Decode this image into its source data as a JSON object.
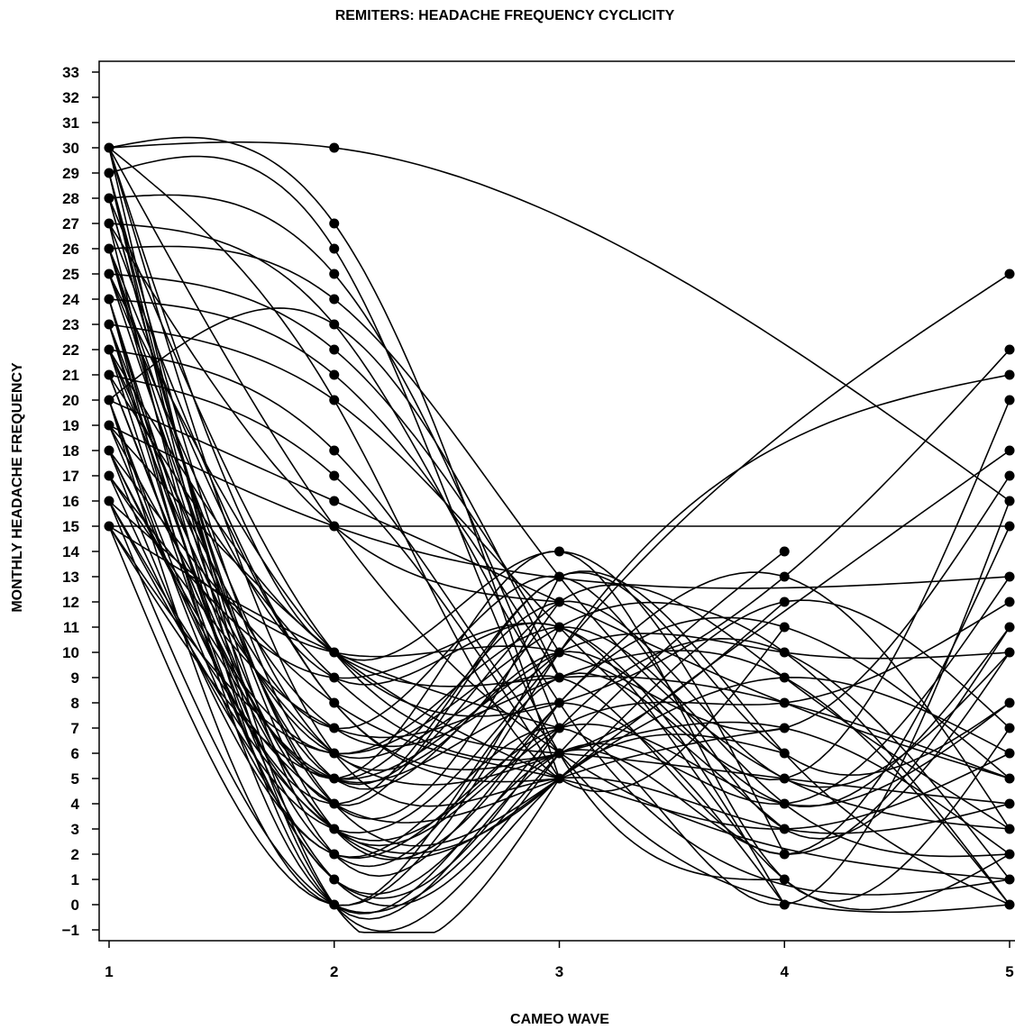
{
  "chart_data": {
    "type": "line",
    "title": "REMITERS: HEADACHE FREQUENCY CYCLICITY",
    "xlabel": "CAMEO WAVE",
    "ylabel": "MONTHLY HEADACHE FREQUENCY",
    "x_ticks": [
      "1",
      "2",
      "3",
      "4",
      "5"
    ],
    "y_ticks": [
      "-1",
      "0",
      "1",
      "2",
      "3",
      "4",
      "5",
      "6",
      "7",
      "8",
      "9",
      "10",
      "11",
      "12",
      "13",
      "14",
      "15",
      "16",
      "17",
      "18",
      "19",
      "20",
      "21",
      "22",
      "23",
      "24",
      "25",
      "26",
      "27",
      "28",
      "29",
      "30",
      "31",
      "32",
      "33"
    ],
    "xlim": [
      0.95,
      5
    ],
    "ylim": [
      -1.4,
      33.5
    ],
    "grid": false,
    "legend": "none",
    "line_color": "#000000",
    "marker": "filled-circle",
    "observed_points": {
      "wave_1": [
        15,
        16,
        17,
        18,
        19,
        20,
        21,
        22,
        23,
        24,
        25,
        26,
        27,
        28,
        29,
        30
      ],
      "wave_2": [
        0,
        1,
        2,
        3,
        4,
        5,
        6,
        7,
        8,
        9,
        10,
        15,
        16,
        17,
        18,
        20,
        21,
        22,
        23,
        24,
        25,
        26,
        27,
        30
      ],
      "wave_3": [
        5,
        6,
        7,
        8,
        9,
        10,
        11,
        12,
        13,
        14
      ],
      "wave_4": [
        0,
        1,
        2,
        3,
        4,
        5,
        6,
        7,
        8,
        9,
        10,
        11,
        12,
        13,
        14
      ],
      "wave_5": [
        0,
        1,
        2,
        3,
        4,
        5,
        6,
        7,
        8,
        10,
        11,
        12,
        13,
        15,
        16,
        17,
        18,
        20,
        21,
        22,
        25
      ]
    },
    "series": [
      {
        "x": [
          1,
          5
        ],
        "values": [
          15,
          15
        ]
      },
      {
        "x": [
          1,
          2,
          5
        ],
        "values": [
          30,
          30,
          16
        ]
      },
      {
        "x": [
          1,
          2,
          3
        ],
        "values": [
          30,
          27,
          5
        ]
      },
      {
        "x": [
          1,
          2,
          3,
          4
        ],
        "values": [
          29,
          26,
          6,
          1
        ]
      },
      {
        "x": [
          1,
          2,
          3
        ],
        "values": [
          28,
          25,
          7
        ]
      },
      {
        "x": [
          1,
          2,
          3,
          5
        ],
        "values": [
          27,
          23,
          8,
          1
        ]
      },
      {
        "x": [
          1,
          2,
          3,
          4,
          5
        ],
        "values": [
          26,
          24,
          13,
          5,
          3
        ]
      },
      {
        "x": [
          1,
          2,
          3
        ],
        "values": [
          25,
          22,
          10
        ]
      },
      {
        "x": [
          1,
          2,
          3
        ],
        "values": [
          24,
          21,
          9
        ]
      },
      {
        "x": [
          1,
          2,
          3,
          4
        ],
        "values": [
          23,
          20,
          11,
          3
        ]
      },
      {
        "x": [
          1,
          2,
          3,
          5
        ],
        "values": [
          22,
          18,
          6,
          0
        ]
      },
      {
        "x": [
          1,
          2,
          3
        ],
        "values": [
          21,
          17,
          5
        ]
      },
      {
        "x": [
          1,
          2,
          3,
          4,
          5
        ],
        "values": [
          20,
          16,
          12,
          8,
          5
        ]
      },
      {
        "x": [
          1,
          2,
          5
        ],
        "values": [
          19,
          15,
          13
        ]
      },
      {
        "x": [
          1,
          2,
          3,
          4
        ],
        "values": [
          30,
          10,
          14,
          2
        ]
      },
      {
        "x": [
          1,
          2,
          3
        ],
        "values": [
          30,
          0,
          5
        ]
      },
      {
        "x": [
          1,
          2,
          3,
          4,
          5
        ],
        "values": [
          29,
          5,
          10,
          4,
          11
        ]
      },
      {
        "x": [
          1,
          2,
          3
        ],
        "values": [
          28,
          3,
          8
        ]
      },
      {
        "x": [
          1,
          2,
          3,
          4,
          5
        ],
        "values": [
          27,
          8,
          6,
          7,
          2
        ]
      },
      {
        "x": [
          1,
          2,
          3
        ],
        "values": [
          26,
          6,
          12
        ]
      },
      {
        "x": [
          1,
          2,
          3,
          4,
          5
        ],
        "values": [
          25,
          4,
          5,
          9,
          6
        ]
      },
      {
        "x": [
          1,
          2,
          3
        ],
        "values": [
          24,
          2,
          11
        ]
      },
      {
        "x": [
          1,
          2,
          3,
          4,
          5
        ],
        "values": [
          23,
          7,
          13,
          3,
          10
        ]
      },
      {
        "x": [
          1,
          2,
          3
        ],
        "values": [
          22,
          1,
          7
        ]
      },
      {
        "x": [
          1,
          2,
          3,
          4
        ],
        "values": [
          21,
          9,
          6,
          12
        ]
      },
      {
        "x": [
          1,
          2,
          3,
          4,
          5
        ],
        "values": [
          20,
          0,
          9,
          5,
          20
        ]
      },
      {
        "x": [
          1,
          2,
          3
        ],
        "values": [
          19,
          10,
          5
        ]
      },
      {
        "x": [
          1,
          2,
          3,
          4
        ],
        "values": [
          18,
          5,
          8,
          0
        ]
      },
      {
        "x": [
          1,
          2,
          3,
          5
        ],
        "values": [
          17,
          3,
          10,
          25
        ]
      },
      {
        "x": [
          1,
          2,
          3,
          4
        ],
        "values": [
          16,
          0,
          6,
          14
        ]
      },
      {
        "x": [
          1,
          2,
          3
        ],
        "values": [
          15,
          10,
          7
        ]
      },
      {
        "x": [
          1,
          2,
          3,
          4,
          5
        ],
        "values": [
          15,
          6,
          11,
          10,
          0
        ]
      },
      {
        "x": [
          1,
          2,
          3,
          4
        ],
        "values": [
          30,
          20,
          5,
          11
        ]
      },
      {
        "x": [
          1,
          2,
          3,
          4
        ],
        "values": [
          29,
          0,
          5,
          6
        ]
      },
      {
        "x": [
          1,
          2,
          3
        ],
        "values": [
          28,
          4,
          13
        ]
      },
      {
        "x": [
          1,
          2,
          3
        ],
        "values": [
          27,
          15,
          12
        ]
      },
      {
        "x": [
          1,
          2,
          3
        ],
        "values": [
          26,
          8,
          5
        ]
      },
      {
        "x": [
          1,
          2,
          3,
          4,
          5
        ],
        "values": [
          25,
          10,
          8,
          13,
          22
        ]
      },
      {
        "x": [
          1,
          2,
          3
        ],
        "values": [
          24,
          1,
          6
        ]
      },
      {
        "x": [
          1,
          2,
          3,
          4,
          5
        ],
        "values": [
          23,
          5,
          14,
          1,
          7
        ]
      },
      {
        "x": [
          1,
          2,
          3
        ],
        "values": [
          22,
          7,
          10
        ]
      },
      {
        "x": [
          1,
          2,
          3,
          5
        ],
        "values": [
          21,
          3,
          5,
          18
        ]
      },
      {
        "x": [
          1,
          2,
          3
        ],
        "values": [
          20,
          23,
          9
        ]
      },
      {
        "x": [
          1,
          2,
          3
        ],
        "values": [
          19,
          6,
          6
        ]
      },
      {
        "x": [
          1,
          2,
          3,
          4,
          5
        ],
        "values": [
          18,
          2,
          7,
          4,
          8
        ]
      },
      {
        "x": [
          1,
          2,
          3,
          4
        ],
        "values": [
          17,
          9,
          11,
          0
        ]
      },
      {
        "x": [
          1,
          2,
          3,
          4
        ],
        "values": [
          16,
          4,
          5,
          7
        ]
      },
      {
        "x": [
          1,
          2,
          3,
          5
        ],
        "values": [
          15,
          0,
          10,
          21
        ]
      },
      {
        "x": [
          1,
          2,
          5
        ],
        "values": [
          30,
          15,
          1
        ]
      },
      {
        "x": [
          1,
          2,
          3,
          4,
          5
        ],
        "values": [
          28,
          10,
          6,
          5,
          4
        ]
      },
      {
        "x": [
          1,
          2,
          3,
          4,
          5
        ],
        "values": [
          26,
          5,
          12,
          9,
          3
        ]
      },
      {
        "x": [
          1,
          2,
          3,
          4,
          5
        ],
        "values": [
          24,
          3,
          7,
          8,
          12
        ]
      },
      {
        "x": [
          1,
          2,
          3,
          4,
          5
        ],
        "values": [
          22,
          6,
          9,
          2,
          15
        ]
      },
      {
        "x": [
          1,
          2,
          3,
          4,
          5
        ],
        "values": [
          20,
          4,
          13,
          6,
          0
        ]
      },
      {
        "x": [
          1,
          2,
          3,
          4,
          5
        ],
        "values": [
          18,
          8,
          5,
          3,
          6
        ]
      },
      {
        "x": [
          1,
          2,
          3,
          4,
          5
        ],
        "values": [
          16,
          10,
          10,
          7,
          17
        ]
      },
      {
        "x": [
          1,
          2,
          3,
          4,
          5
        ],
        "values": [
          29,
          2,
          8,
          11,
          5
        ]
      },
      {
        "x": [
          1,
          2,
          3,
          4,
          5
        ],
        "values": [
          27,
          0,
          6,
          4,
          13
        ]
      },
      {
        "x": [
          1,
          2,
          3,
          4,
          5
        ],
        "values": [
          25,
          9,
          11,
          1,
          2
        ]
      },
      {
        "x": [
          1,
          2,
          3,
          4,
          5
        ],
        "values": [
          23,
          1,
          7,
          10,
          1
        ]
      },
      {
        "x": [
          1,
          2,
          3,
          4,
          5
        ],
        "values": [
          21,
          5,
          12,
          5,
          10
        ]
      },
      {
        "x": [
          1,
          2,
          3,
          4,
          5
        ],
        "values": [
          19,
          3,
          8,
          13,
          3
        ]
      },
      {
        "x": [
          1,
          2,
          3,
          4,
          5
        ],
        "values": [
          17,
          7,
          9,
          9,
          0
        ]
      },
      {
        "x": [
          1,
          2,
          3,
          4,
          5
        ],
        "values": [
          15,
          5,
          10,
          10,
          10
        ]
      },
      {
        "x": [
          1,
          2,
          3,
          4,
          5
        ],
        "values": [
          30,
          6,
          5,
          3,
          4
        ]
      },
      {
        "x": [
          1,
          2,
          3,
          4,
          5
        ],
        "values": [
          26,
          4,
          13,
          6,
          8
        ]
      },
      {
        "x": [
          1,
          2,
          3,
          4,
          5
        ],
        "values": [
          24,
          0,
          6,
          2,
          11
        ]
      },
      {
        "x": [
          1,
          2,
          3,
          4,
          5
        ],
        "values": [
          22,
          10,
          9,
          8,
          5
        ]
      },
      {
        "x": [
          1,
          2,
          3,
          4,
          5
        ],
        "values": [
          20,
          2,
          7,
          0,
          16
        ]
      },
      {
        "x": [
          1,
          2,
          3,
          4,
          5
        ],
        "values": [
          18,
          6,
          11,
          4,
          2
        ]
      },
      {
        "x": [
          1,
          2,
          3,
          4,
          5
        ],
        "values": [
          16,
          3,
          5,
          12,
          7
        ]
      }
    ]
  }
}
